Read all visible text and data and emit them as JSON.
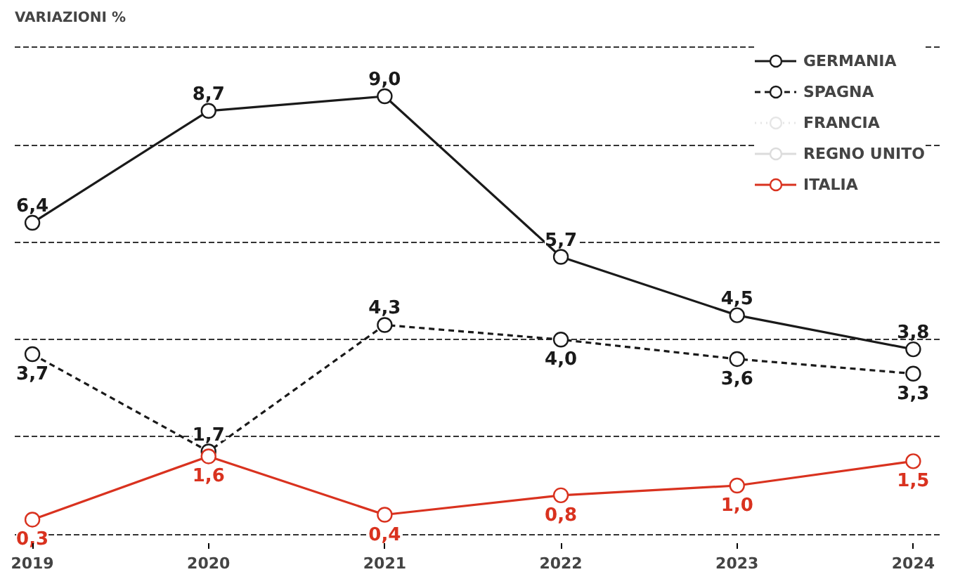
{
  "chart_data": {
    "type": "line",
    "title": "VARIAZIONI %",
    "categories": [
      "2019",
      "2020",
      "2021",
      "2022",
      "2023",
      "2024"
    ],
    "series": [
      {
        "name": "GERMANIA",
        "color": "#1a1a1a",
        "line_style": "solid",
        "values": [
          6.4,
          8.7,
          9.0,
          5.7,
          4.5,
          3.8
        ],
        "value_labels": [
          "6,4",
          "8,7",
          "9,0",
          "5,7",
          "4,5",
          "3,8"
        ]
      },
      {
        "name": "SPAGNA",
        "color": "#1a1a1a",
        "line_style": "dashed",
        "values": [
          3.7,
          1.7,
          4.3,
          4.0,
          3.6,
          3.3
        ],
        "value_labels": [
          "3,7",
          "1,7",
          "4,3",
          "4,0",
          "3,6",
          "3,3"
        ]
      },
      {
        "name": "FRANCIA",
        "color": "#e6e6e6",
        "line_style": "dotted",
        "values": [
          null,
          null,
          null,
          null,
          null,
          null
        ]
      },
      {
        "name": "REGNO UNITO",
        "color": "#dcdcdc",
        "line_style": "solid",
        "values": [
          null,
          null,
          null,
          null,
          null,
          null
        ]
      },
      {
        "name": "ITALIA",
        "color": "#d9321f",
        "line_style": "solid",
        "values": [
          0.3,
          1.6,
          0.4,
          0.8,
          1.0,
          1.5
        ],
        "value_labels": [
          "0,3",
          "1,6",
          "0,4",
          "0,8",
          "1,0",
          "1,5"
        ]
      }
    ],
    "yticks": [
      {
        "value": 0,
        "label": null
      },
      {
        "value": 2,
        "label": null
      },
      {
        "value": 4,
        "label": null
      },
      {
        "value": 6,
        "label": null
      },
      {
        "value": 8,
        "label": null
      },
      {
        "value": 10,
        "label": null
      }
    ],
    "tick_labels": "x",
    "grid": "y",
    "legend": "top right",
    "marker": "circle"
  }
}
